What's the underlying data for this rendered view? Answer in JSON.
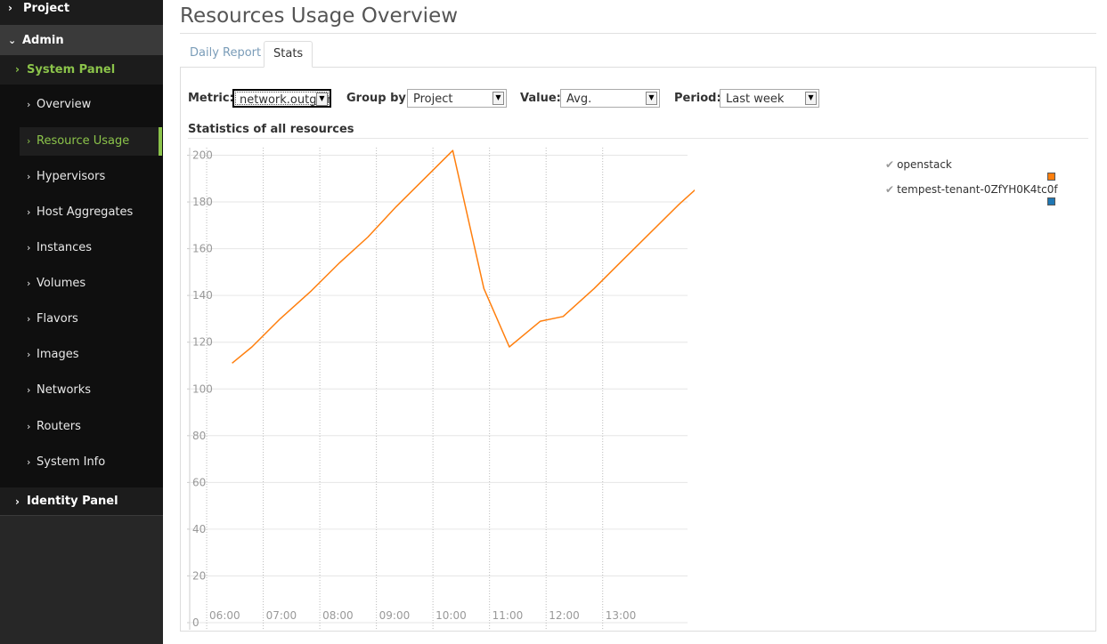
{
  "sidebar": {
    "project": "Project",
    "admin": "Admin",
    "system_panel": "System Panel",
    "items": [
      {
        "label": "Overview"
      },
      {
        "label": "Resource Usage"
      },
      {
        "label": "Hypervisors"
      },
      {
        "label": "Host Aggregates"
      },
      {
        "label": "Instances"
      },
      {
        "label": "Volumes"
      },
      {
        "label": "Flavors"
      },
      {
        "label": "Images"
      },
      {
        "label": "Networks"
      },
      {
        "label": "Routers"
      },
      {
        "label": "System Info"
      }
    ],
    "identity_panel": "Identity Panel"
  },
  "page": {
    "title": "Resources Usage Overview",
    "tabs": [
      {
        "label": "Daily Report"
      },
      {
        "label": "Stats"
      }
    ]
  },
  "controls": {
    "metric_label": "Metric:",
    "metric_value": "network.outgoing",
    "group_label": "Group by:",
    "group_value": "Project",
    "value_label": "Value:",
    "value_value": "Avg.",
    "period_label": "Period:",
    "period_value": "Last week"
  },
  "stats_heading": "Statistics of all resources",
  "legend": [
    {
      "name": "openstack",
      "color": "#ff7f0e"
    },
    {
      "name": "tempest-tenant-0ZfYH0K4tc0f",
      "color": "#1f77b4"
    }
  ],
  "chart_data": {
    "type": "line",
    "x_ticks": [
      "06:00",
      "07:00",
      "08:00",
      "09:00",
      "10:00",
      "11:00",
      "12:00",
      "13:00"
    ],
    "y_ticks": [
      0,
      20,
      40,
      60,
      80,
      100,
      120,
      140,
      160,
      180,
      200
    ],
    "ylim": [
      0,
      200
    ],
    "x_range_hours": [
      5.7,
      14.5
    ],
    "grid": true,
    "series": [
      {
        "name": "openstack",
        "color": "#ff7f0e",
        "points": [
          [
            6.45,
            111
          ],
          [
            6.8,
            118
          ],
          [
            7.3,
            130
          ],
          [
            7.85,
            142
          ],
          [
            8.35,
            154
          ],
          [
            8.85,
            165
          ],
          [
            9.35,
            178
          ],
          [
            9.85,
            190
          ],
          [
            10.35,
            202
          ],
          [
            10.9,
            143
          ],
          [
            11.35,
            118
          ],
          [
            11.9,
            129
          ],
          [
            12.3,
            131
          ],
          [
            12.85,
            143
          ],
          [
            13.35,
            155
          ],
          [
            13.85,
            167
          ],
          [
            14.35,
            179
          ],
          [
            14.9,
            191
          ]
        ]
      }
    ]
  }
}
